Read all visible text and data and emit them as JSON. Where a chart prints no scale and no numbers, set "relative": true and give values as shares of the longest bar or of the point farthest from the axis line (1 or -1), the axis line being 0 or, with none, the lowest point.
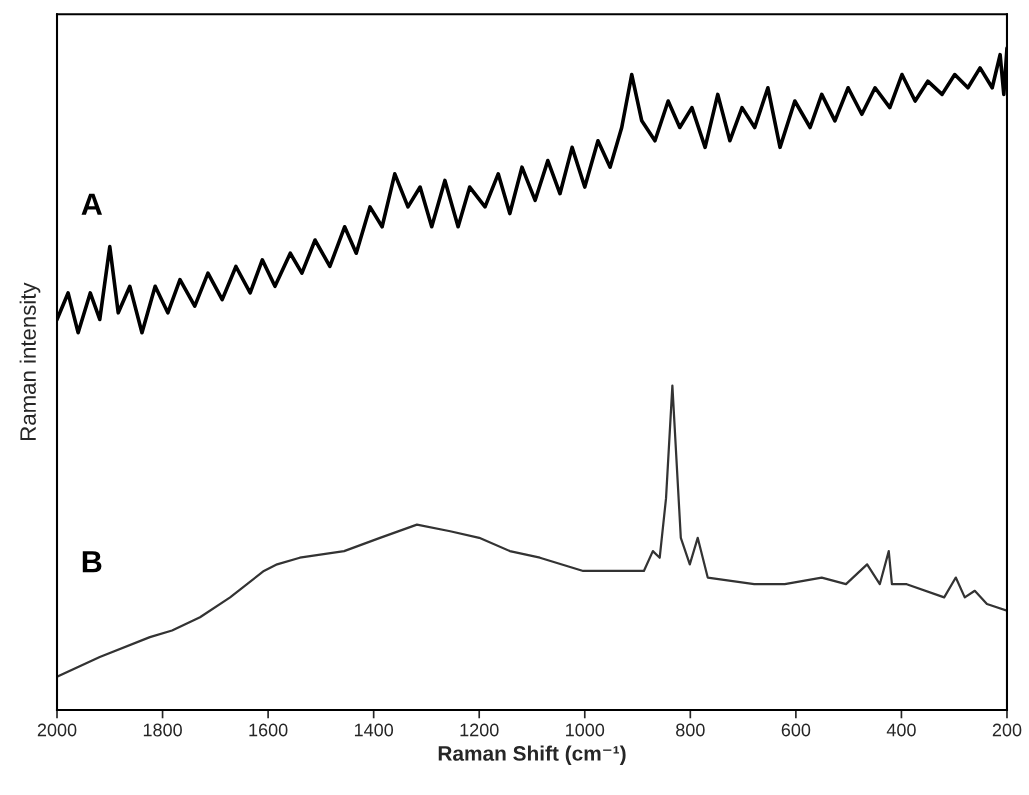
{
  "chart_data": {
    "type": "line",
    "xlabel": "Raman Shift (cm⁻¹)",
    "ylabel": "Raman intensity",
    "relative": true,
    "xlim": [
      2000,
      200
    ],
    "xticks": [
      2000,
      1800,
      1600,
      1400,
      1200,
      1000,
      800,
      600,
      400,
      200
    ],
    "grid": false,
    "legend": false,
    "series": [
      {
        "name": "A",
        "color": "#000000",
        "x": [
          2000,
          1979,
          1960,
          1937,
          1919,
          1900,
          1884,
          1862,
          1839,
          1814,
          1790,
          1767,
          1739,
          1714,
          1687,
          1661,
          1634,
          1611,
          1587,
          1558,
          1536,
          1511,
          1483,
          1455,
          1433,
          1407,
          1384,
          1360,
          1335,
          1312,
          1290,
          1265,
          1240,
          1218,
          1189,
          1164,
          1142,
          1119,
          1094,
          1070,
          1047,
          1024,
          1000,
          975,
          952,
          930,
          911,
          892,
          867,
          842,
          820,
          797,
          772,
          748,
          725,
          702,
          678,
          653,
          630,
          602,
          573,
          551,
          526,
          501,
          475,
          450,
          422,
          399,
          374,
          350,
          323,
          299,
          274,
          251,
          228,
          213,
          206,
          200
        ],
        "values": [
          0.59,
          0.63,
          0.57,
          0.63,
          0.59,
          0.7,
          0.6,
          0.64,
          0.57,
          0.64,
          0.6,
          0.65,
          0.61,
          0.66,
          0.62,
          0.67,
          0.63,
          0.68,
          0.64,
          0.69,
          0.66,
          0.71,
          0.67,
          0.73,
          0.69,
          0.76,
          0.73,
          0.81,
          0.76,
          0.79,
          0.73,
          0.8,
          0.73,
          0.79,
          0.76,
          0.81,
          0.75,
          0.82,
          0.77,
          0.83,
          0.78,
          0.85,
          0.79,
          0.86,
          0.82,
          0.88,
          0.96,
          0.89,
          0.86,
          0.92,
          0.88,
          0.91,
          0.85,
          0.93,
          0.86,
          0.91,
          0.88,
          0.94,
          0.85,
          0.92,
          0.88,
          0.93,
          0.89,
          0.94,
          0.9,
          0.94,
          0.91,
          0.96,
          0.92,
          0.95,
          0.93,
          0.96,
          0.94,
          0.97,
          0.94,
          0.99,
          0.93,
          1.0
        ]
      },
      {
        "name": "B",
        "color": "#333333",
        "x": [
          2000,
          1919,
          1824,
          1782,
          1729,
          1672,
          1608,
          1583,
          1540,
          1456,
          1388,
          1318,
          1255,
          1200,
          1142,
          1085,
          1003,
          933,
          888,
          871,
          858,
          846,
          834,
          825,
          818,
          801,
          786,
          767,
          679,
          621,
          551,
          505,
          465,
          441,
          424,
          418,
          390,
          319,
          297,
          280,
          261,
          238,
          200
        ],
        "values": [
          0.05,
          0.08,
          0.11,
          0.12,
          0.14,
          0.17,
          0.21,
          0.22,
          0.23,
          0.24,
          0.26,
          0.28,
          0.27,
          0.26,
          0.24,
          0.23,
          0.21,
          0.21,
          0.21,
          0.24,
          0.23,
          0.32,
          0.49,
          0.36,
          0.26,
          0.22,
          0.26,
          0.2,
          0.19,
          0.19,
          0.2,
          0.19,
          0.22,
          0.19,
          0.24,
          0.19,
          0.19,
          0.17,
          0.2,
          0.17,
          0.18,
          0.16,
          0.15
        ]
      }
    ]
  }
}
